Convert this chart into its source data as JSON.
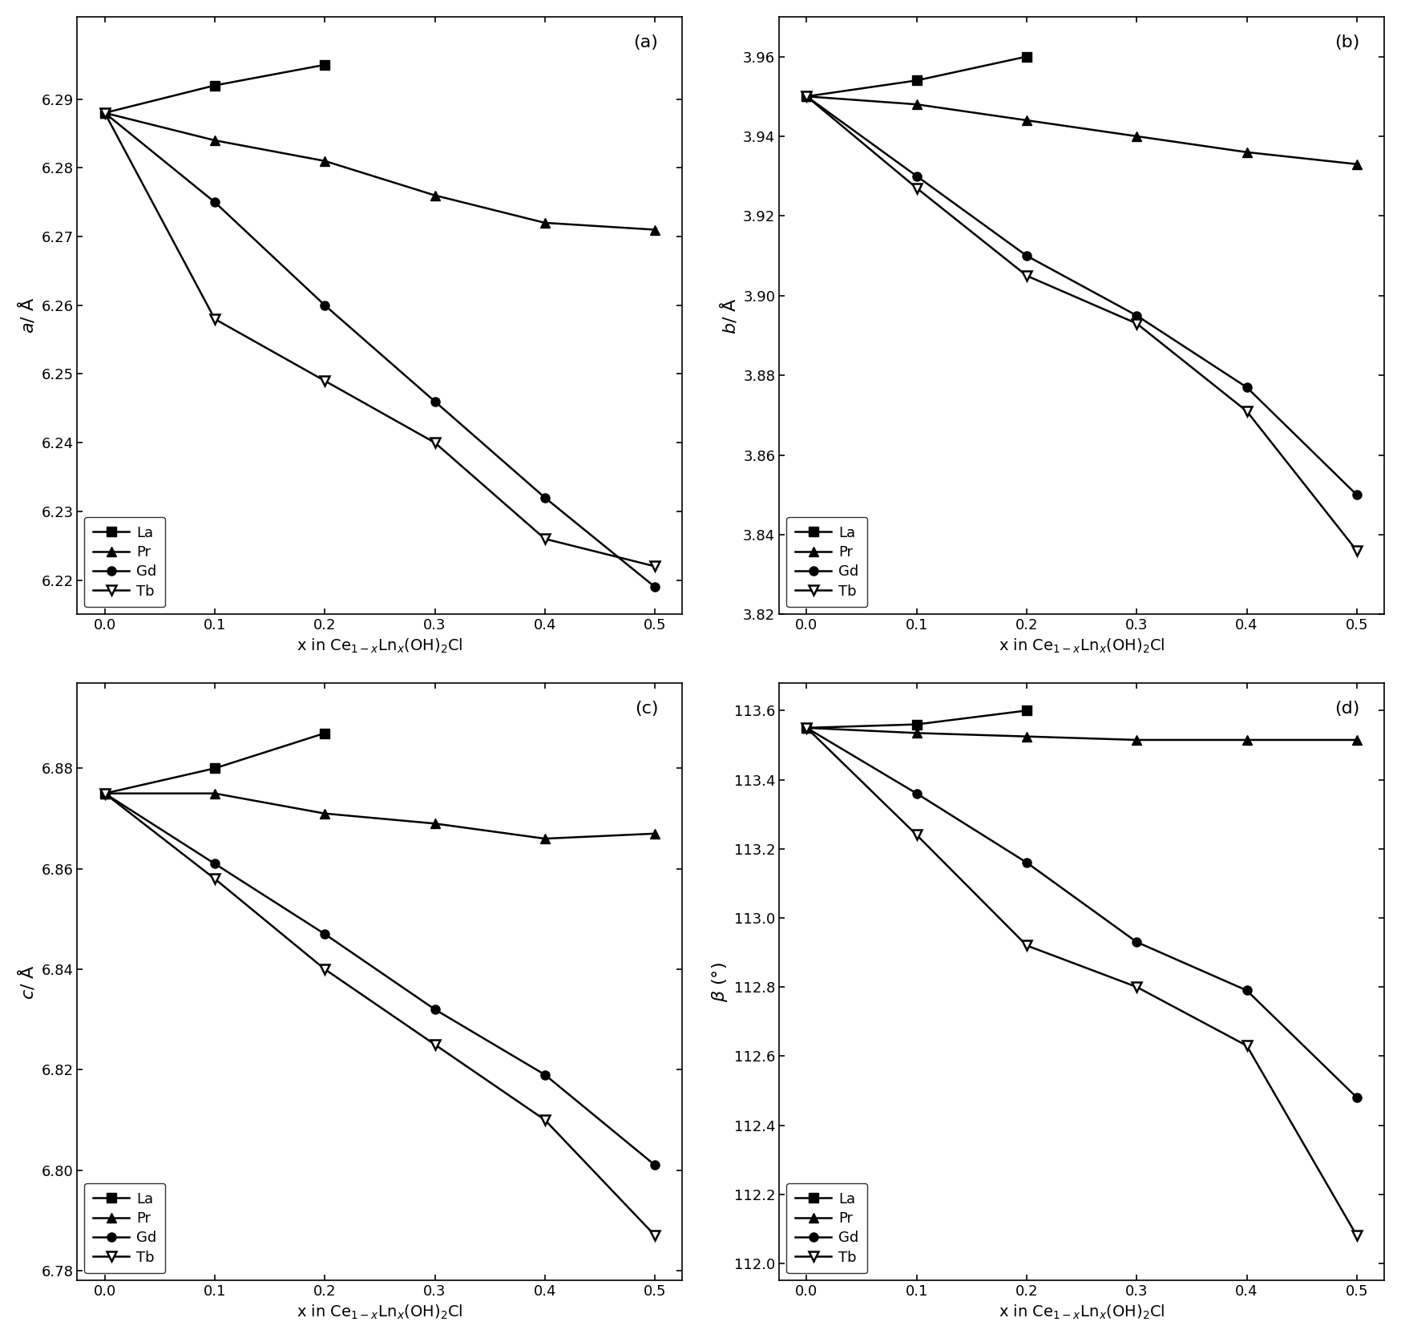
{
  "x": [
    0.0,
    0.1,
    0.2,
    0.3,
    0.4,
    0.5
  ],
  "panel_a": {
    "La": [
      6.288,
      6.292,
      6.295,
      null,
      null,
      null
    ],
    "Pr": [
      6.288,
      6.284,
      6.281,
      6.276,
      6.272,
      6.271
    ],
    "Gd": [
      6.288,
      6.275,
      6.26,
      6.246,
      6.232,
      6.219
    ],
    "Tb": [
      6.288,
      6.258,
      6.249,
      6.24,
      6.226,
      6.222
    ]
  },
  "panel_b": {
    "La": [
      3.95,
      3.954,
      3.96,
      null,
      null,
      null
    ],
    "Pr": [
      3.95,
      3.948,
      3.944,
      3.94,
      3.936,
      3.933
    ],
    "Gd": [
      3.95,
      3.93,
      3.91,
      3.895,
      3.877,
      3.85
    ],
    "Tb": [
      3.95,
      3.927,
      3.905,
      3.893,
      3.871,
      3.836
    ]
  },
  "panel_c": {
    "La": [
      6.875,
      6.88,
      6.887,
      null,
      null,
      null
    ],
    "Pr": [
      6.875,
      6.875,
      6.871,
      6.869,
      6.866,
      6.867
    ],
    "Gd": [
      6.875,
      6.861,
      6.847,
      6.832,
      6.819,
      6.801
    ],
    "Tb": [
      6.875,
      6.858,
      6.84,
      6.825,
      6.81,
      6.787
    ]
  },
  "panel_d": {
    "La": [
      113.55,
      113.56,
      113.6,
      null,
      null,
      null
    ],
    "Pr": [
      113.55,
      113.535,
      113.525,
      113.515,
      113.515,
      113.515
    ],
    "Gd": [
      113.55,
      113.36,
      113.16,
      112.93,
      112.79,
      112.48
    ],
    "Tb": [
      113.55,
      113.24,
      112.92,
      112.8,
      112.63,
      112.08
    ]
  },
  "xlabel": "x in Ce$_{1-x}$Ln$_x$(OH)$_2$Cl",
  "ylabel_a": "$a$/ Å",
  "ylabel_b": "$b$/ Å",
  "ylabel_c": "$c$/ Å",
  "ylabel_d": "$\\beta$ (°)",
  "panel_labels": [
    "(a)",
    "(b)",
    "(c)",
    "(d)"
  ],
  "legend_labels": [
    "La",
    "Pr",
    "Gd",
    "Tb"
  ],
  "ylim_a": [
    6.215,
    6.302
  ],
  "ylim_b": [
    3.82,
    3.97
  ],
  "ylim_c": [
    6.778,
    6.897
  ],
  "ylim_d": [
    111.95,
    113.68
  ],
  "yticks_a": [
    6.22,
    6.23,
    6.24,
    6.25,
    6.26,
    6.27,
    6.28,
    6.29
  ],
  "yticks_b": [
    3.82,
    3.84,
    3.86,
    3.88,
    3.9,
    3.92,
    3.94,
    3.96
  ],
  "yticks_c": [
    6.78,
    6.8,
    6.82,
    6.84,
    6.86,
    6.88
  ],
  "yticks_d": [
    112.0,
    112.2,
    112.4,
    112.6,
    112.8,
    113.0,
    113.2,
    113.4,
    113.6
  ]
}
